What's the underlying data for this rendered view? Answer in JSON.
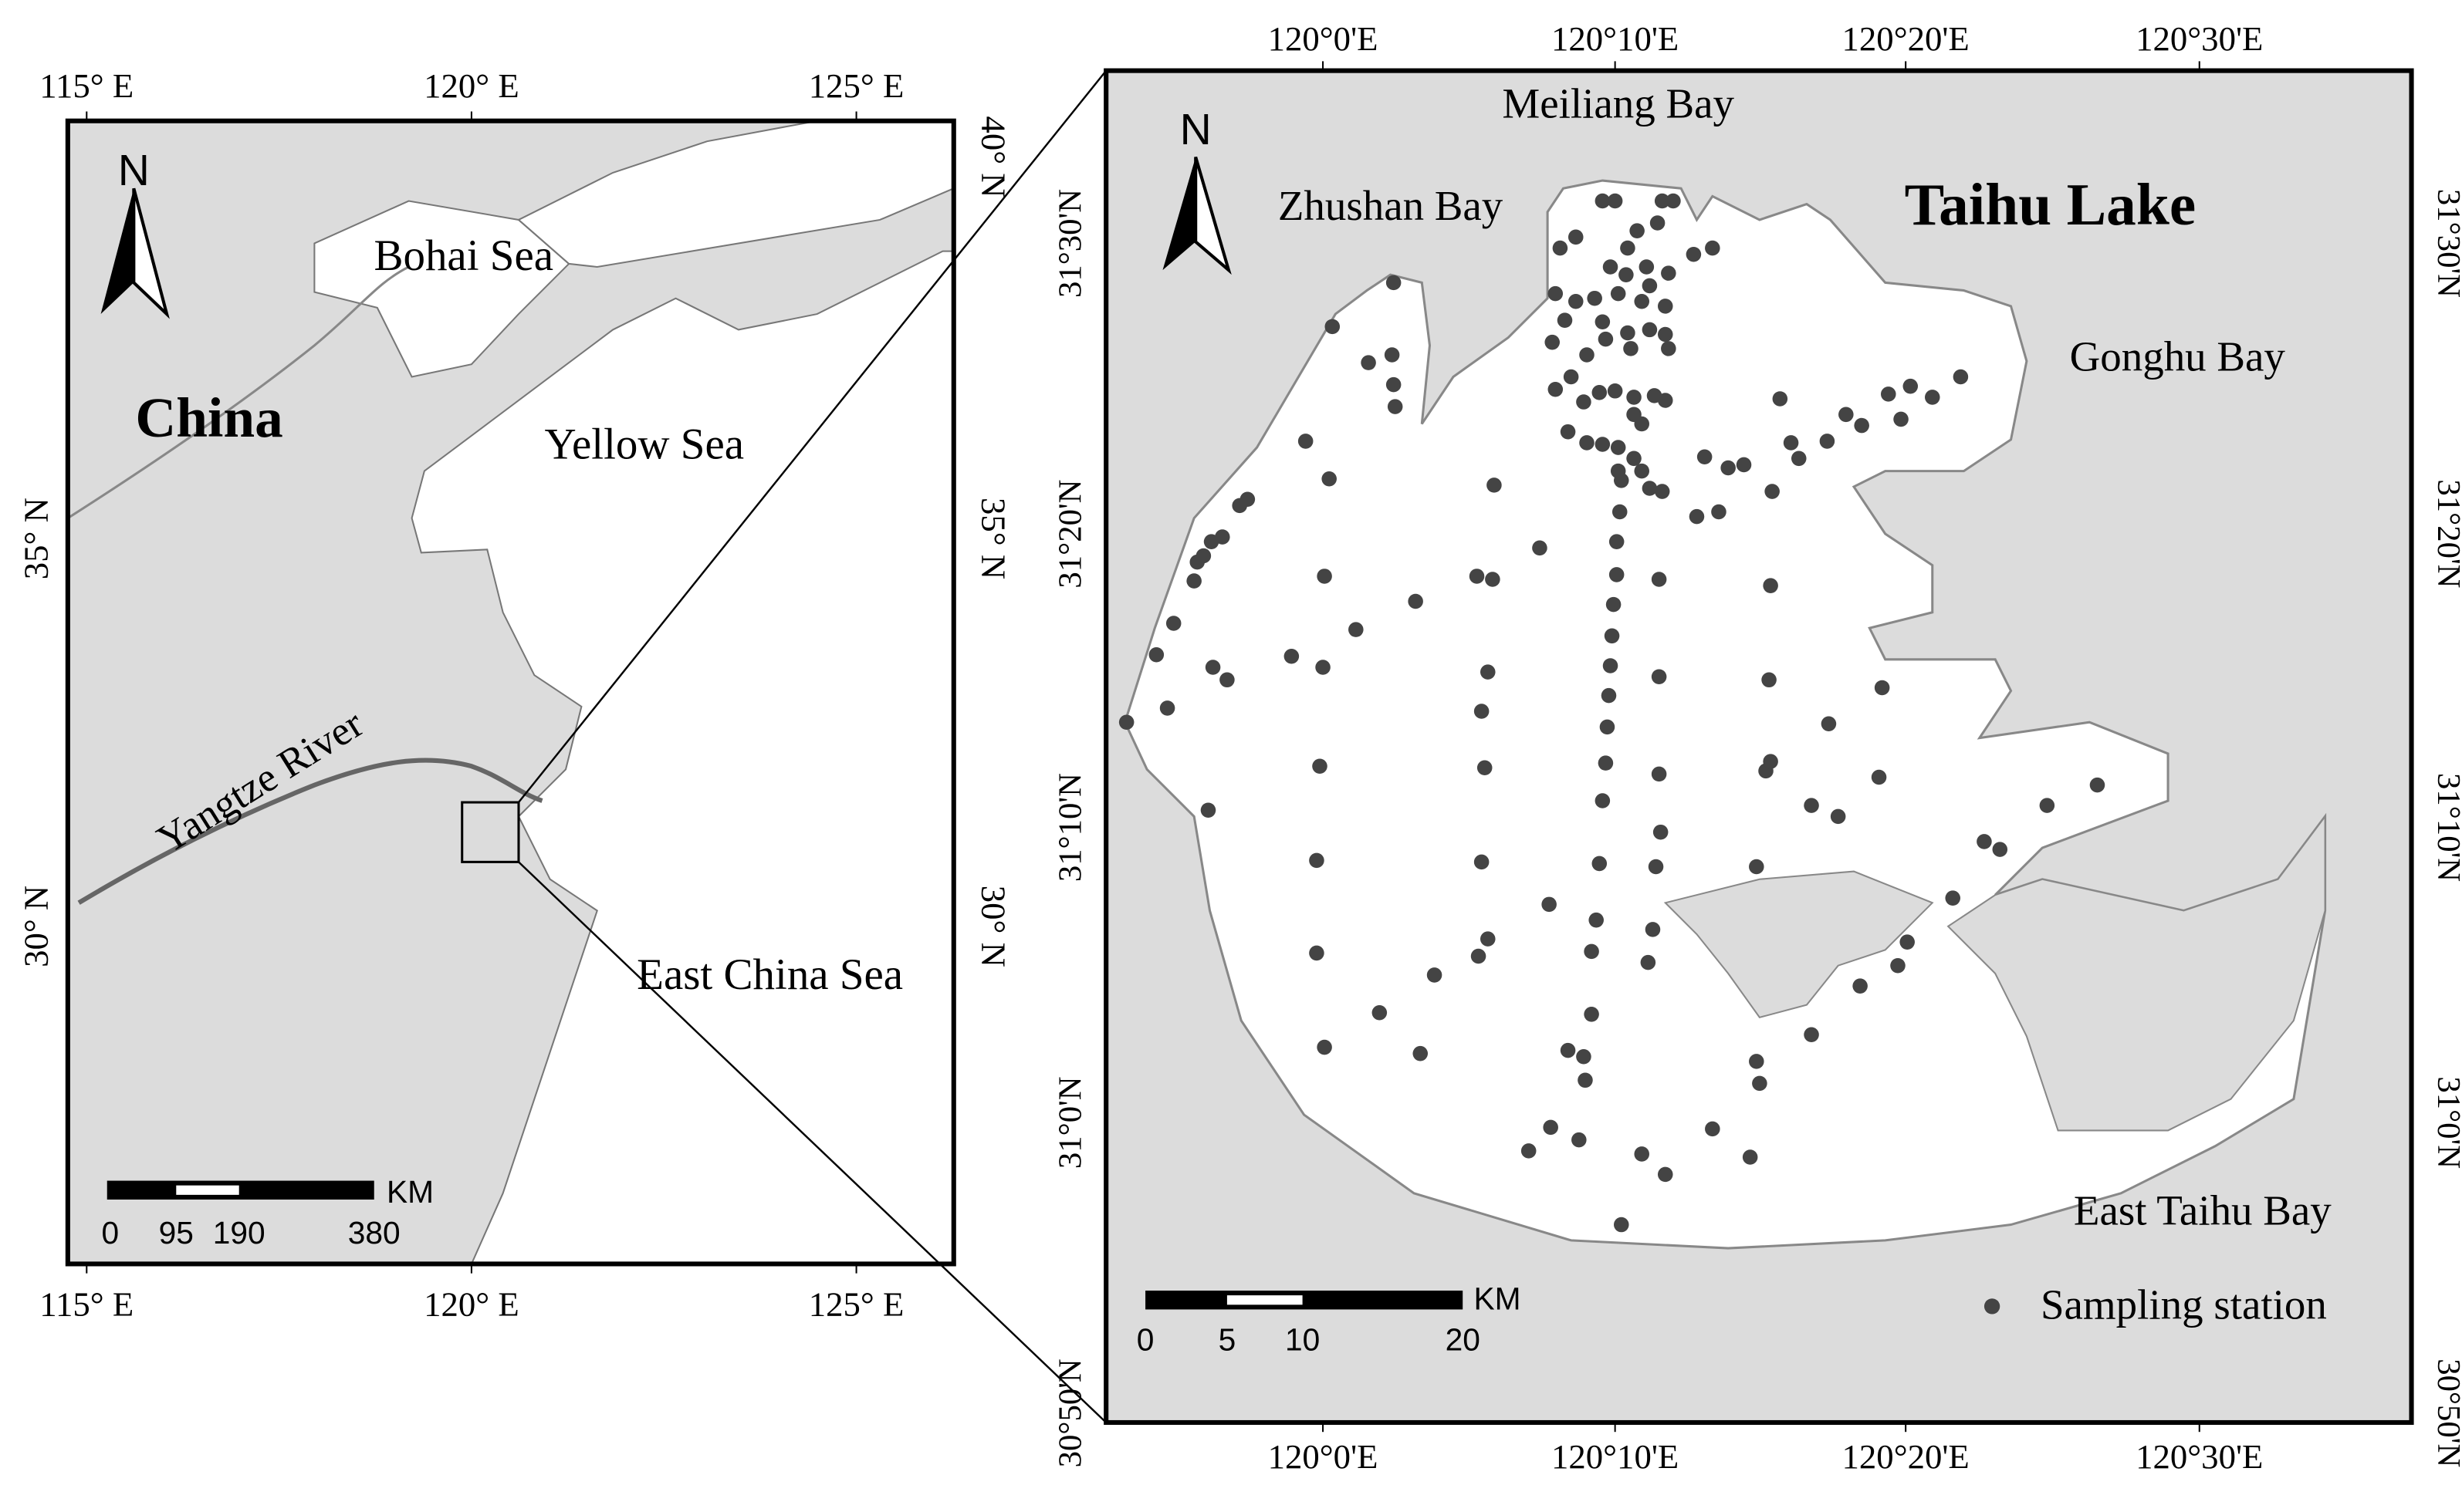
{
  "left_map": {
    "top_axis_labels": [
      "115° E",
      "120° E",
      "125° E"
    ],
    "bottom_axis_labels": [
      "115° E",
      "120° E",
      "125° E"
    ],
    "left_axis_labels": [
      "35° N",
      "30° N"
    ],
    "right_axis_labels": [
      "40° N",
      "35° N",
      "30° N"
    ],
    "north": "N",
    "labels": [
      "Bohai Sea",
      "China",
      "Yellow Sea",
      "Yangtze River",
      "East China Sea"
    ],
    "scale": {
      "unit": "KM",
      "ticks": [
        0,
        95,
        190,
        380
      ]
    }
  },
  "right_map": {
    "top_axis_labels": [
      "120°0'E",
      "120°10'E",
      "120°20'E",
      "120°30'E"
    ],
    "bottom_axis_labels": [
      "120°0'E",
      "120°10'E",
      "120°20'E",
      "120°30'E"
    ],
    "left_axis_labels": [
      "31°30'N",
      "31°20'N",
      "31°10'N",
      "31°0'N",
      "30°50'N"
    ],
    "right_axis_labels": [
      "31°30'N",
      "31°20'N",
      "31°10'N",
      "31°0'N",
      "30°50'N"
    ],
    "north": "N",
    "labels": [
      "Meiliang Bay",
      "Zhushan Bay",
      "Taihu Lake",
      "Gonghu Bay",
      "East Taihu Bay"
    ],
    "scale": {
      "unit": "KM",
      "ticks": [
        0,
        5,
        10,
        20
      ]
    },
    "legend": "Sampling station"
  }
}
